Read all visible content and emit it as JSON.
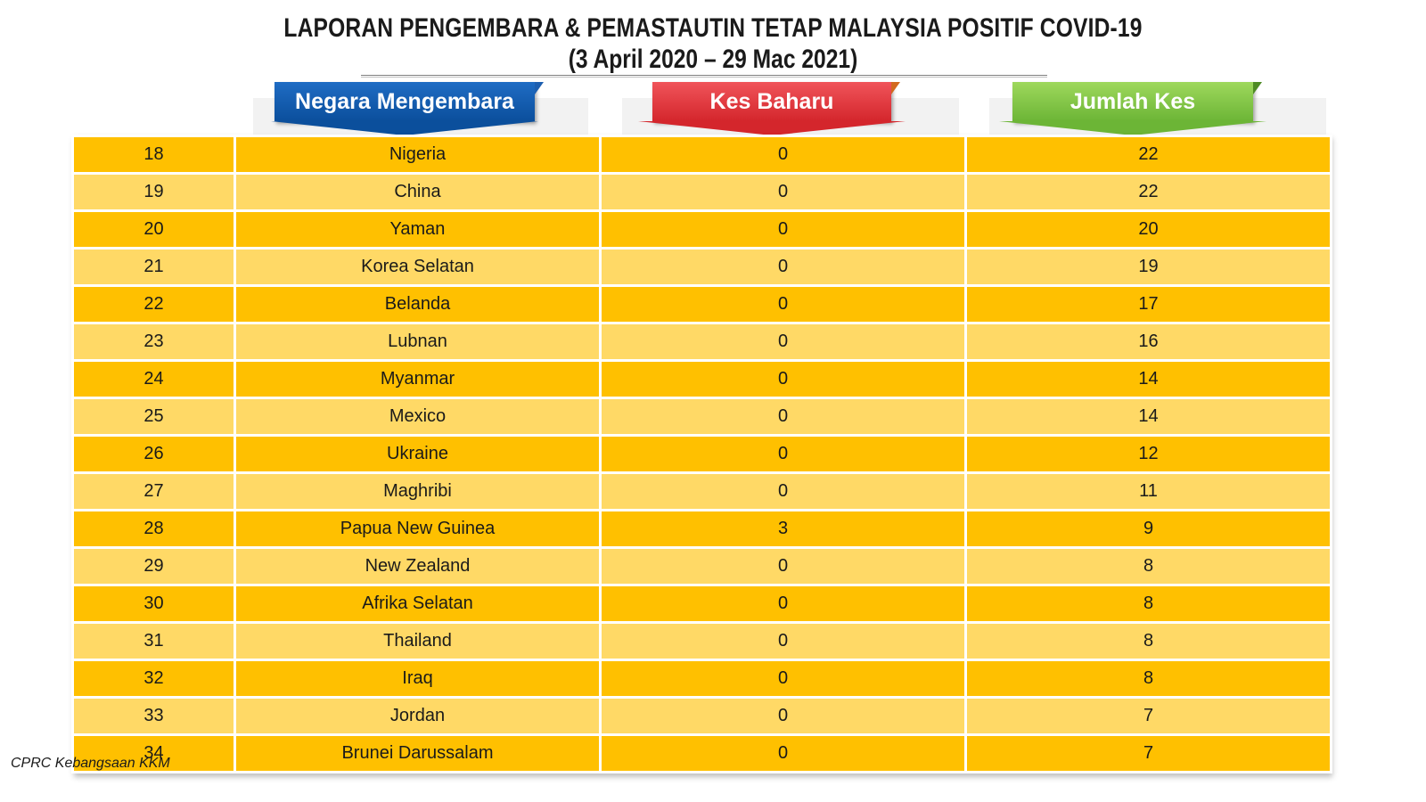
{
  "title": {
    "line1": "LAPORAN PENGEMBARA & PEMASTAUTIN TETAP MALAYSIA POSITIF COVID-19",
    "line2": "(3 April 2020 – 29 Mac 2021)"
  },
  "headers": {
    "country": "Negara Mengembara",
    "new_cases": "Kes Baharu",
    "total_cases": "Jumlah Kes"
  },
  "colors": {
    "row_dark": "#ffc000",
    "row_light": "#ffd966",
    "tab_blue": "#0b4f9c",
    "tab_red": "#d4262c",
    "tab_green": "#6cb536"
  },
  "rows": [
    {
      "no": "18",
      "country": "Nigeria",
      "new": "0",
      "total": "22"
    },
    {
      "no": "19",
      "country": "China",
      "new": "0",
      "total": "22"
    },
    {
      "no": "20",
      "country": "Yaman",
      "new": "0",
      "total": "20"
    },
    {
      "no": "21",
      "country": "Korea Selatan",
      "new": "0",
      "total": "19"
    },
    {
      "no": "22",
      "country": "Belanda",
      "new": "0",
      "total": "17"
    },
    {
      "no": "23",
      "country": "Lubnan",
      "new": "0",
      "total": "16"
    },
    {
      "no": "24",
      "country": "Myanmar",
      "new": "0",
      "total": "14"
    },
    {
      "no": "25",
      "country": "Mexico",
      "new": "0",
      "total": "14"
    },
    {
      "no": "26",
      "country": "Ukraine",
      "new": "0",
      "total": "12"
    },
    {
      "no": "27",
      "country": "Maghribi",
      "new": "0",
      "total": "11"
    },
    {
      "no": "28",
      "country": "Papua New Guinea",
      "new": "3",
      "total": "9"
    },
    {
      "no": "29",
      "country": "New Zealand",
      "new": "0",
      "total": "8"
    },
    {
      "no": "30",
      "country": "Afrika Selatan",
      "new": "0",
      "total": "8"
    },
    {
      "no": "31",
      "country": "Thailand",
      "new": "0",
      "total": "8"
    },
    {
      "no": "32",
      "country": "Iraq",
      "new": "0",
      "total": "8"
    },
    {
      "no": "33",
      "country": "Jordan",
      "new": "0",
      "total": "7"
    },
    {
      "no": "34",
      "country": "Brunei Darussalam",
      "new": "0",
      "total": "7"
    }
  ],
  "footer": "CPRC Kebangsaan KKM"
}
